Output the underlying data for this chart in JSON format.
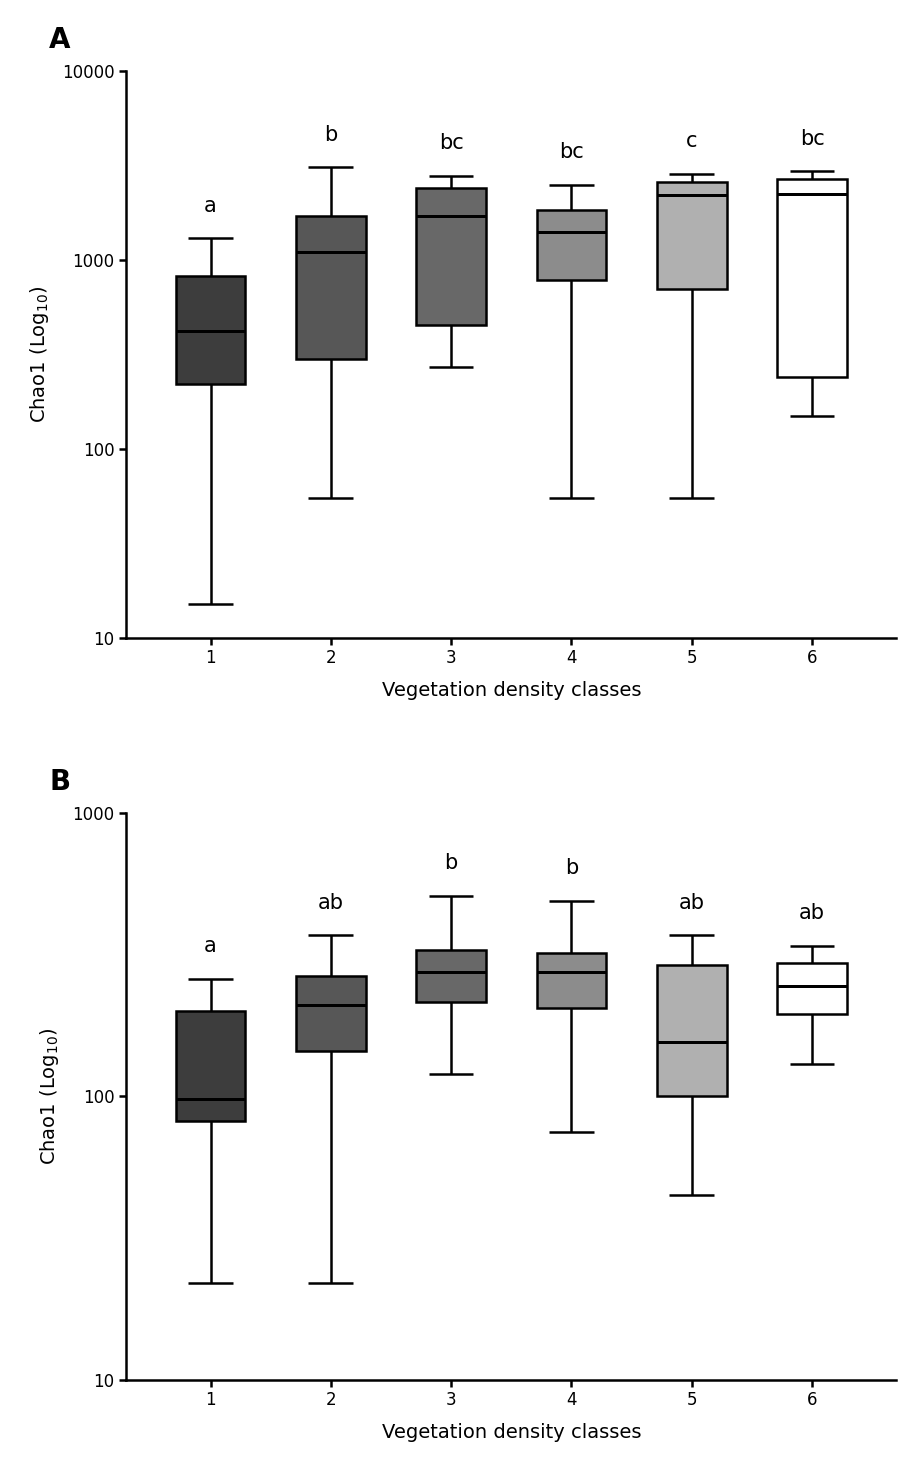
{
  "panel_A": {
    "title": "A",
    "ylabel": "Chao1 (Log$_{10}$)",
    "xlabel": "Vegetation density classes",
    "ylim": [
      10,
      10000
    ],
    "yticks": [
      10,
      100,
      1000,
      10000
    ],
    "yticklabels": [
      "10",
      "100",
      "1000",
      "10000"
    ],
    "categories": [
      1,
      2,
      3,
      4,
      5,
      6
    ],
    "sig_labels": [
      "a",
      "b",
      "bc",
      "bc",
      "c",
      "bc"
    ],
    "boxes": [
      {
        "whislo": 15,
        "q1": 220,
        "med": 420,
        "q3": 820,
        "whishi": 1300
      },
      {
        "whislo": 55,
        "q1": 300,
        "med": 1100,
        "q3": 1700,
        "whishi": 3100
      },
      {
        "whislo": 270,
        "q1": 450,
        "med": 1700,
        "q3": 2400,
        "whishi": 2800
      },
      {
        "whislo": 55,
        "q1": 780,
        "med": 1400,
        "q3": 1850,
        "whishi": 2500
      },
      {
        "whislo": 55,
        "q1": 700,
        "med": 2200,
        "q3": 2600,
        "whishi": 2850
      },
      {
        "whislo": 150,
        "q1": 240,
        "med": 2250,
        "q3": 2700,
        "whishi": 2950
      }
    ],
    "box_facecolors": [
      "#3d3d3d",
      "#575757",
      "#686868",
      "#8c8c8c",
      "#b0b0b0",
      "#ffffff"
    ],
    "box_edgecolor": "#000000"
  },
  "panel_B": {
    "title": "B",
    "ylabel": "Chao1 (Log$_{10}$)",
    "xlabel": "Vegetation density classes",
    "ylim": [
      10,
      1000
    ],
    "yticks": [
      10,
      100,
      1000
    ],
    "yticklabels": [
      "10",
      "100",
      "1000"
    ],
    "categories": [
      1,
      2,
      3,
      4,
      5,
      6
    ],
    "sig_labels": [
      "a",
      "ab",
      "b",
      "b",
      "ab",
      "ab"
    ],
    "boxes": [
      {
        "whislo": 22,
        "q1": 82,
        "med": 98,
        "q3": 200,
        "whishi": 260
      },
      {
        "whislo": 22,
        "q1": 145,
        "med": 210,
        "q3": 265,
        "whishi": 370
      },
      {
        "whislo": 120,
        "q1": 215,
        "med": 275,
        "q3": 330,
        "whishi": 510
      },
      {
        "whislo": 75,
        "q1": 205,
        "med": 275,
        "q3": 320,
        "whishi": 490
      },
      {
        "whislo": 45,
        "q1": 100,
        "med": 155,
        "q3": 290,
        "whishi": 370
      },
      {
        "whislo": 130,
        "q1": 195,
        "med": 245,
        "q3": 295,
        "whishi": 340
      }
    ],
    "box_facecolors": [
      "#3d3d3d",
      "#575757",
      "#686868",
      "#8c8c8c",
      "#b0b0b0",
      "#ffffff"
    ],
    "box_edgecolor": "#000000"
  },
  "figure_bg": "#ffffff",
  "linewidth": 1.8,
  "box_width": 0.58,
  "sig_fontsize": 15,
  "axis_label_fontsize": 14,
  "tick_fontsize": 12,
  "panel_label_fontsize": 20
}
